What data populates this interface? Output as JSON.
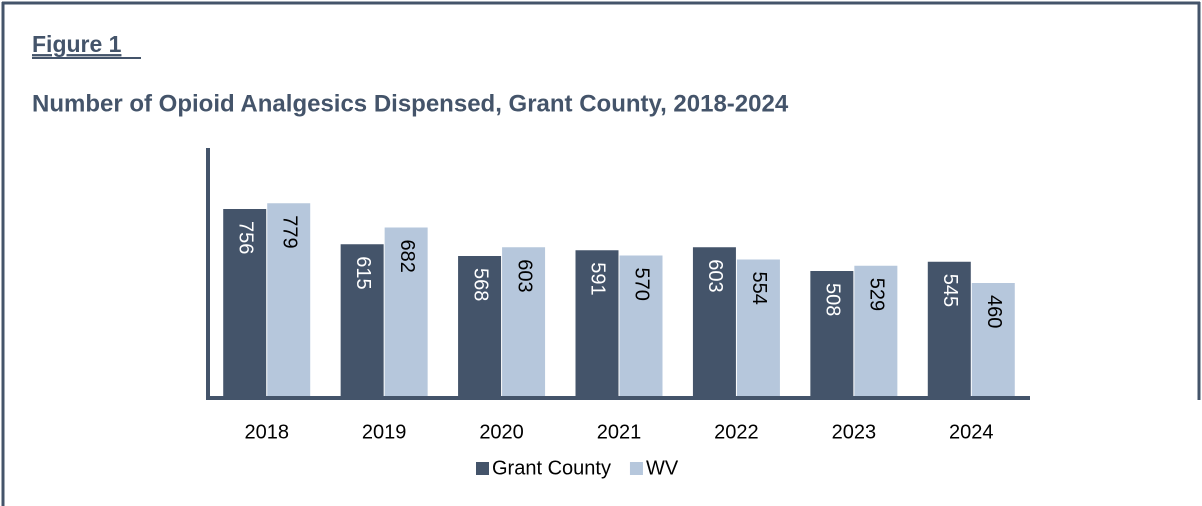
{
  "figure_label": "Figure 1",
  "chart_data": {
    "type": "bar",
    "title": "Number of Opioid Analgesics Dispensed, Grant County, 2018-2024",
    "categories": [
      "2018",
      "2019",
      "2020",
      "2021",
      "2022",
      "2023",
      "2024"
    ],
    "series": [
      {
        "name": "Grant County",
        "color": "#44546a",
        "values": [
          756,
          615,
          568,
          591,
          603,
          508,
          545
        ]
      },
      {
        "name": "WV",
        "color": "#b6c7dc",
        "values": [
          779,
          682,
          603,
          570,
          554,
          529,
          460
        ]
      }
    ],
    "ylim": [
      0,
      1000
    ],
    "legend": "bottom"
  }
}
